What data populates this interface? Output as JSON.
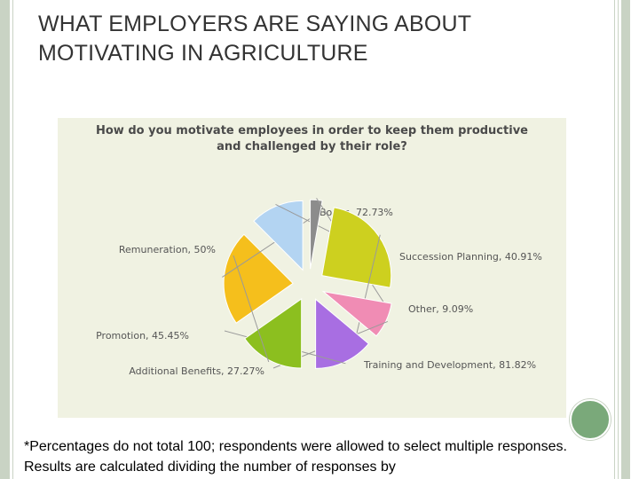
{
  "slide": {
    "title": "WHAT EMPLOYERS ARE SAYING ABOUT MOTIVATING IN AGRICULTURE",
    "footnote": "*Percentages do not total 100; respondents were allowed to select multiple responses. Results are calculated dividing the number of responses by"
  },
  "chart_data": {
    "type": "pie",
    "title_lines": [
      "How do you motivate employees in order to keep them productive",
      "and challenged by their role?"
    ],
    "slices": [
      {
        "label": "Bonus, 72.73%",
        "value": 72.73,
        "color": "#f5bf1c"
      },
      {
        "label": "Succession Planning, 40.91%",
        "value": 40.91,
        "color": "#b3d4f2"
      },
      {
        "label": "Other, 9.09%",
        "value": 9.09,
        "color": "#8c8c8c"
      },
      {
        "label": "Training and Development, 81.82%",
        "value": 81.82,
        "color": "#cdd01f"
      },
      {
        "label": "Additional Benefits, 27.27%",
        "value": 27.27,
        "color": "#f08cb4"
      },
      {
        "label": "Promotion, 45.45%",
        "value": 45.45,
        "color": "#a86ee2"
      },
      {
        "label": "Remuneration, 50%",
        "value": 50,
        "color": "#8cbf1f"
      }
    ]
  }
}
